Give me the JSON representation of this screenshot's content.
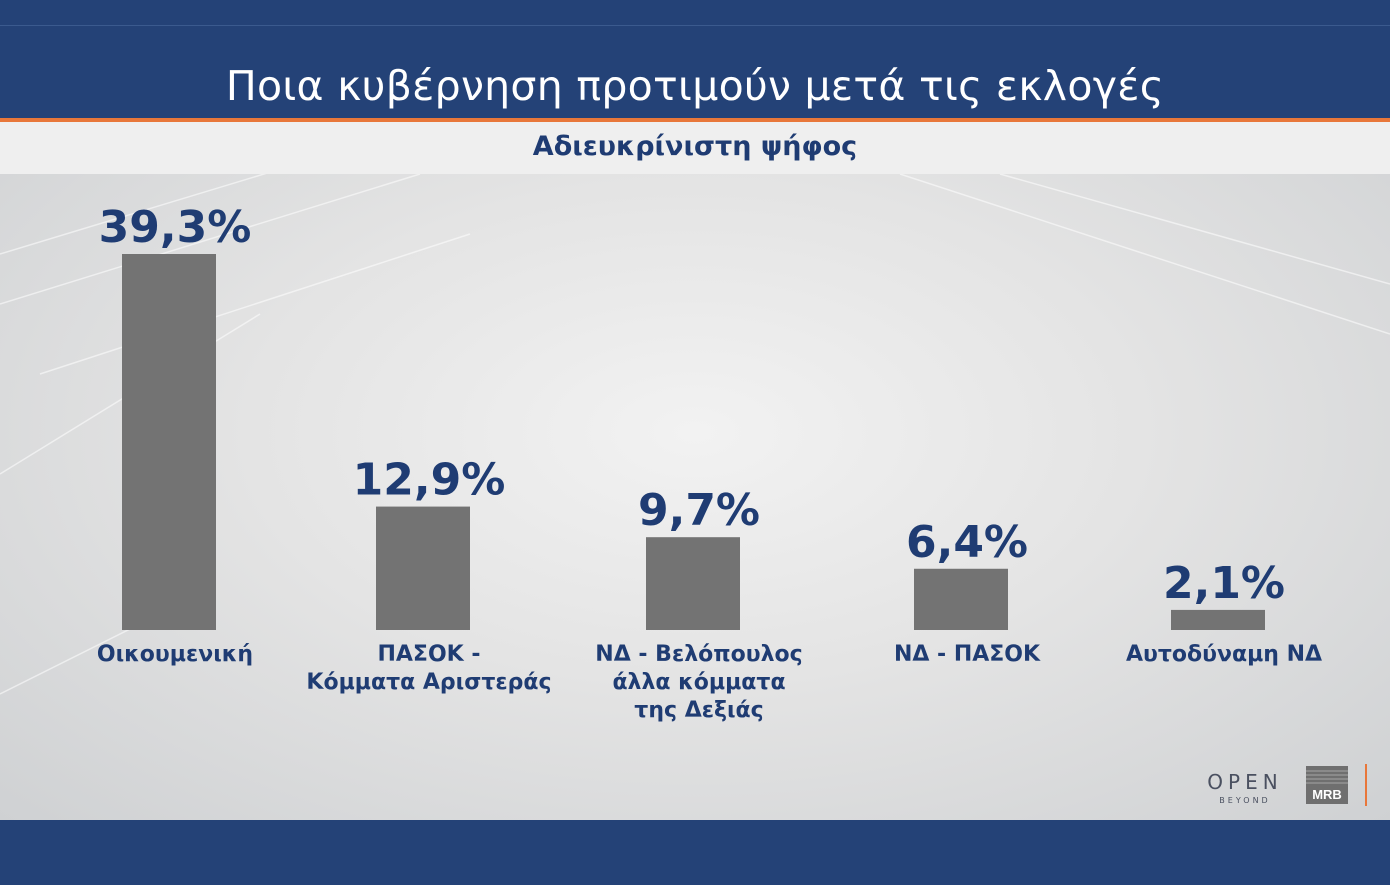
{
  "header": {
    "title": "Ποια κυβέρνηση προτιμούν μετά τις εκλογές",
    "subtitle": "Αδιευκρίνιστη ψήφος"
  },
  "colors": {
    "header_bg": "#244277",
    "accent": "#e8773a",
    "bar": "#737373",
    "label": "#1f3c73"
  },
  "chart_data": {
    "type": "bar",
    "title": "Ποια κυβέρνηση προτιμούν μετά τις εκλογές",
    "subtitle": "Αδιευκρίνιστη ψήφος",
    "categories": [
      [
        "Οικουμενική"
      ],
      [
        "ΠΑΣΟΚ -",
        "Κόμματα Αριστεράς"
      ],
      [
        "ΝΔ - Βελόπουλος",
        "άλλα κόμματα",
        "της Δεξιάς"
      ],
      [
        "ΝΔ - ΠΑΣΟΚ"
      ],
      [
        "Αυτοδύναμη ΝΔ"
      ]
    ],
    "values": [
      39.3,
      12.9,
      9.7,
      6.4,
      2.1
    ],
    "value_labels": [
      "39,3%",
      "12,9%",
      "9,7%",
      "6,4%",
      "2,1%"
    ],
    "unit": "%",
    "grid": false,
    "legend": "none"
  },
  "logos": {
    "open_main": "OPEN",
    "open_sub": "BEYOND",
    "mrb": "MRB"
  }
}
